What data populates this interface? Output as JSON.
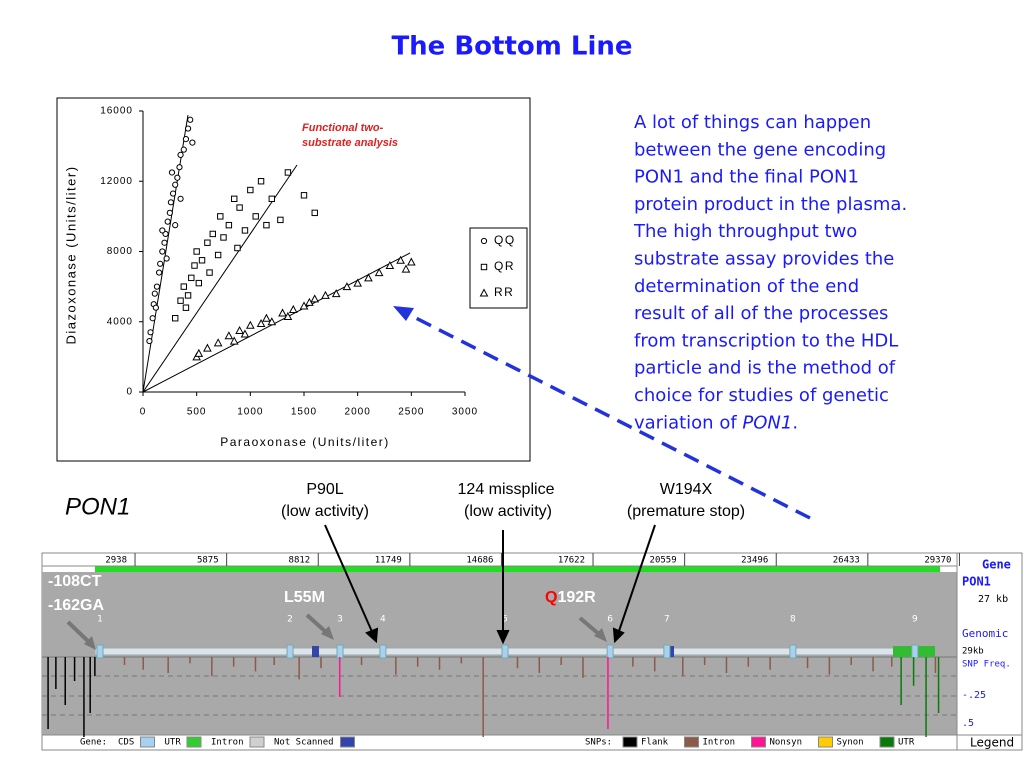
{
  "title": "The Bottom Line",
  "chart_data": {
    "type": "scatter",
    "annotation": [
      "Functional two-",
      "substrate analysis"
    ],
    "xlabel": "Paraoxonase (Units/liter)",
    "ylabel": "Diazoxonase (Units/liter)",
    "xlim": [
      0,
      3000
    ],
    "ylim": [
      0,
      16000
    ],
    "xticks": [
      0,
      500,
      1000,
      1500,
      2000,
      2500,
      3000
    ],
    "yticks": [
      0,
      4000,
      8000,
      12000,
      16000
    ],
    "series": [
      {
        "name": "QQ",
        "marker": "circle",
        "color": "#000000",
        "x": [
          60,
          70,
          90,
          100,
          110,
          130,
          150,
          160,
          180,
          200,
          210,
          230,
          250,
          260,
          280,
          300,
          320,
          340,
          350,
          380,
          400,
          420,
          440,
          460,
          300,
          220,
          180,
          350,
          120,
          270
        ],
        "y": [
          2900,
          3400,
          4200,
          5000,
          5600,
          6000,
          6800,
          7300,
          8000,
          8500,
          9000,
          9700,
          10200,
          10800,
          11300,
          11800,
          12200,
          12800,
          13500,
          13800,
          14400,
          15000,
          15500,
          14200,
          9500,
          7600,
          9200,
          11000,
          4800,
          12500
        ],
        "fit": {
          "x": [
            0,
            419
          ],
          "y": [
            0,
            15770
          ]
        }
      },
      {
        "name": "QR",
        "marker": "square",
        "color": "#000000",
        "x": [
          300,
          350,
          380,
          420,
          450,
          480,
          500,
          520,
          550,
          600,
          620,
          650,
          700,
          720,
          750,
          800,
          850,
          880,
          900,
          950,
          1000,
          1050,
          1100,
          1150,
          1200,
          1280,
          1350,
          1500,
          1600,
          400
        ],
        "y": [
          4200,
          5200,
          6000,
          5500,
          6500,
          7200,
          8000,
          6200,
          7500,
          8500,
          6800,
          9000,
          7800,
          10000,
          8800,
          9500,
          11000,
          8200,
          10500,
          9200,
          11500,
          10000,
          12000,
          9500,
          11000,
          9800,
          12500,
          11200,
          10200,
          4800
        ],
        "fit": {
          "x": [
            0,
            1435
          ],
          "y": [
            0,
            12925
          ]
        }
      },
      {
        "name": "RR",
        "marker": "triangle",
        "color": "#000000",
        "x": [
          500,
          520,
          600,
          700,
          800,
          900,
          950,
          1000,
          1100,
          1150,
          1200,
          1300,
          1350,
          1400,
          1500,
          1550,
          1600,
          1700,
          1800,
          1900,
          2000,
          2100,
          2200,
          2300,
          2400,
          2500,
          2450,
          850
        ],
        "y": [
          2000,
          2200,
          2500,
          2800,
          3200,
          3500,
          3300,
          3800,
          3900,
          4200,
          4000,
          4500,
          4300,
          4700,
          4900,
          5100,
          5300,
          5500,
          5600,
          6000,
          6200,
          6500,
          6800,
          7200,
          7500,
          7400,
          7000,
          2900
        ],
        "fit": {
          "x": [
            0,
            2488
          ],
          "y": [
            0,
            7915
          ]
        }
      }
    ]
  },
  "paragraph": {
    "lines": [
      "A lot of things can happen",
      "between the gene encoding",
      "PON1 and the final PON1",
      "protein product in the plasma.",
      "The high throughput two",
      "substrate assay provides the",
      "determination of the end",
      "result of all of the processes",
      "from transcription to the HDL",
      "particle and is the method of",
      "choice for studies of genetic"
    ],
    "last": {
      "text": "variation of ",
      "em": "PON1",
      "tail": "."
    }
  },
  "gene_label": "PON1",
  "mutations": [
    {
      "name": "P90L",
      "effect": "(low activity)"
    },
    {
      "name": "124 missplice",
      "effect": "(low activity)"
    },
    {
      "name": "W194X",
      "effect": "(premature stop)"
    }
  ],
  "browser": {
    "ruler": [
      2938,
      5875,
      8812,
      11749,
      14686,
      17622,
      20559,
      23496,
      26433,
      29370
    ],
    "exons": [
      {
        "label": "1",
        "pos": 1815
      },
      {
        "label": "2",
        "pos": 7908
      },
      {
        "label": "3",
        "pos": 9510
      },
      {
        "label": "4",
        "pos": 10885
      },
      {
        "label": "5",
        "pos": 14800
      },
      {
        "label": "6",
        "pos": 18170
      },
      {
        "label": "7",
        "pos": 19990
      },
      {
        "label": "8",
        "pos": 24030
      },
      {
        "label": "9",
        "pos": 27940
      }
    ],
    "promoter": [
      "-108CT",
      "-162GA"
    ],
    "l55m": "L55M",
    "q192r": {
      "head": "Q",
      "tail": "192R"
    },
    "side": {
      "gene": "Gene",
      "name": "PON1",
      "size": "27 kb",
      "genomic": "Genomic",
      "gsize": "29kb",
      "freq": "SNP Freq.",
      "f1": "-.25",
      "f2": ".5",
      "legend": "Legend"
    },
    "gene_legend": {
      "title": "Gene:",
      "items": [
        {
          "label": "CDS",
          "color": "#a8d0f0"
        },
        {
          "label": "UTR",
          "color": "#33cc33"
        },
        {
          "label": "Intron",
          "color": "#d0d0d0"
        },
        {
          "label": "Not Scanned",
          "color": "#3344aa"
        }
      ]
    },
    "snp_legend": {
      "title": "SNPs:",
      "items": [
        {
          "label": "Flank",
          "color": "#000000",
          "sites": [
            [
              150,
              0.45
            ],
            [
              400,
              0.2
            ],
            [
              700,
              0.3
            ],
            [
              1000,
              0.15
            ],
            [
              1300,
              0.5
            ],
            [
              1500,
              0.35
            ],
            [
              1650,
              0.12
            ]
          ]
        },
        {
          "label": "Intron",
          "color": "#8b5a4a",
          "sites": [
            [
              2600,
              0.05
            ],
            [
              3200,
              0.08
            ],
            [
              4000,
              0.1
            ],
            [
              4700,
              0.04
            ],
            [
              5400,
              0.12
            ],
            [
              6100,
              0.06
            ],
            [
              6800,
              0.09
            ],
            [
              7400,
              0.05
            ],
            [
              8200,
              0.14
            ],
            [
              8900,
              0.07
            ],
            [
              10200,
              0.05
            ],
            [
              11300,
              0.11
            ],
            [
              12000,
              0.06
            ],
            [
              12700,
              0.08
            ],
            [
              13400,
              0.04
            ],
            [
              14100,
              0.5
            ],
            [
              15200,
              0.07
            ],
            [
              15900,
              0.1
            ],
            [
              16600,
              0.05
            ],
            [
              17300,
              0.13
            ],
            [
              18900,
              0.06
            ],
            [
              19600,
              0.09
            ],
            [
              20500,
              0.12
            ],
            [
              21200,
              0.05
            ],
            [
              21900,
              0.1
            ],
            [
              22600,
              0.06
            ],
            [
              23300,
              0.08
            ],
            [
              24500,
              0.07
            ],
            [
              25200,
              0.11
            ],
            [
              25900,
              0.05
            ],
            [
              26600,
              0.09
            ],
            [
              27200,
              0.06
            ],
            [
              28600,
              0.1
            ]
          ]
        },
        {
          "label": "Nonsyn",
          "color": "#ff1493",
          "sites": [
            [
              9500,
              0.25
            ],
            [
              18100,
              0.45
            ]
          ]
        },
        {
          "label": "Synon",
          "color": "#ffcc00"
        },
        {
          "label": "UTR",
          "color": "#0a7a0a",
          "sites": [
            [
              27500,
              0.3
            ],
            [
              27900,
              0.18
            ],
            [
              28300,
              0.5
            ],
            [
              28700,
              0.35
            ]
          ]
        }
      ]
    }
  }
}
